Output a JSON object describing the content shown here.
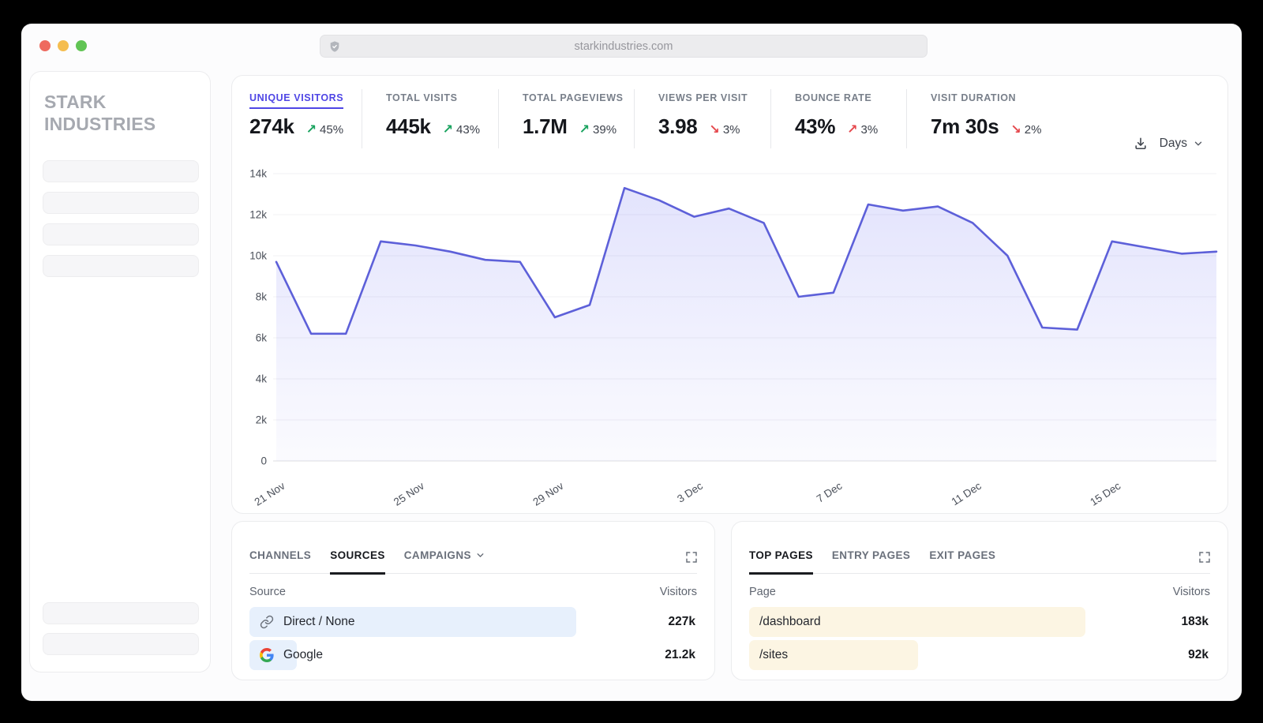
{
  "browser": {
    "url": "starkindustries.com"
  },
  "sidebar": {
    "brand": "STARK INDUSTRIES"
  },
  "metrics": [
    {
      "label": "UNIQUE VISITORS",
      "value": "274k",
      "delta": "45%",
      "direction": "up",
      "trend": "positive",
      "active": true
    },
    {
      "label": "TOTAL VISITS",
      "value": "445k",
      "delta": "43%",
      "direction": "up",
      "trend": "positive",
      "active": false
    },
    {
      "label": "TOTAL PAGEVIEWS",
      "value": "1.7M",
      "delta": "39%",
      "direction": "up",
      "trend": "positive",
      "active": false
    },
    {
      "label": "VIEWS PER VISIT",
      "value": "3.98",
      "delta": "3%",
      "direction": "down",
      "trend": "negative",
      "active": false
    },
    {
      "label": "BOUNCE RATE",
      "value": "43%",
      "delta": "3%",
      "direction": "up",
      "trend": "negative",
      "active": false
    },
    {
      "label": "VISIT DURATION",
      "value": "7m 30s",
      "delta": "2%",
      "direction": "down",
      "trend": "negative",
      "active": false
    }
  ],
  "toolbar": {
    "interval_label": "Days"
  },
  "chart_data": {
    "type": "area",
    "title": "Unique visitors over time",
    "series": [
      {
        "name": "Unique visitors",
        "values": [
          9700,
          6200,
          6200,
          10700,
          10500,
          10200,
          9800,
          9700,
          7000,
          7600,
          13300,
          12700,
          11900,
          12300,
          11600,
          8000,
          8200,
          12500,
          12200,
          12400,
          11600,
          10000,
          6500,
          6400,
          10700,
          10400,
          10100,
          10200
        ]
      }
    ],
    "x_ticks": [
      {
        "index": 0,
        "label": "21 Nov"
      },
      {
        "index": 4,
        "label": "25 Nov"
      },
      {
        "index": 8,
        "label": "29 Nov"
      },
      {
        "index": 12,
        "label": "3 Dec"
      },
      {
        "index": 16,
        "label": "7 Dec"
      },
      {
        "index": 20,
        "label": "11 Dec"
      },
      {
        "index": 24,
        "label": "15 Dec"
      }
    ],
    "ylim": [
      0,
      14000
    ],
    "y_tick_step": 2000,
    "y_tick_labels": [
      "0",
      "2k",
      "4k",
      "6k",
      "8k",
      "10k",
      "12k",
      "14k"
    ],
    "grid": "horizontal",
    "legend": "none",
    "line_color": "#5d60d9",
    "fill_color": "#6366f1"
  },
  "sources_panel": {
    "tabs": [
      {
        "label": "CHANNELS",
        "active": false,
        "has_dropdown": false
      },
      {
        "label": "SOURCES",
        "active": true,
        "has_dropdown": false
      },
      {
        "label": "CAMPAIGNS",
        "active": false,
        "has_dropdown": true
      }
    ],
    "columns": {
      "name": "Source",
      "value": "Visitors"
    },
    "rows": [
      {
        "name": "Direct / None",
        "icon": "link",
        "value": "227k",
        "value_num": 227000
      },
      {
        "name": "Google",
        "icon": "google",
        "value": "21.2k",
        "value_num": 21200
      }
    ],
    "bar_color": "#e7f0fc"
  },
  "pages_panel": {
    "tabs": [
      {
        "label": "TOP PAGES",
        "active": true,
        "has_dropdown": false
      },
      {
        "label": "ENTRY PAGES",
        "active": false,
        "has_dropdown": false
      },
      {
        "label": "EXIT PAGES",
        "active": false,
        "has_dropdown": false
      }
    ],
    "columns": {
      "name": "Page",
      "value": "Visitors"
    },
    "rows": [
      {
        "name": "/dashboard",
        "icon": "none",
        "value": "183k",
        "value_num": 183000
      },
      {
        "name": "/sites",
        "icon": "none",
        "value": "92k",
        "value_num": 92000
      }
    ],
    "bar_color": "#fcf5e3"
  }
}
